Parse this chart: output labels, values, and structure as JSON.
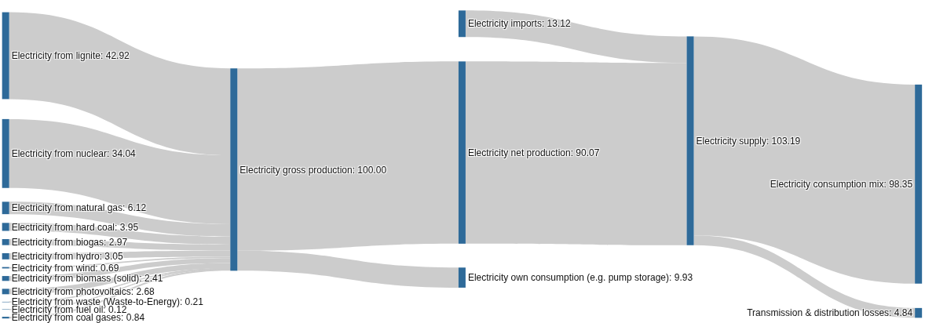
{
  "chart_data": {
    "type": "other",
    "categories": [
      "Electricity from lignite",
      "Electricity from nuclear",
      "Electricity from natural gas",
      "Electricity from hard coal",
      "Electricity from biogas",
      "Electricity from hydro",
      "Electricity from wind",
      "Electricity from biomass (solid)",
      "Electricity from photovoltaics",
      "Electricity from waste (Waste-to-Energy)",
      "Electricity from fuel oil",
      "Electricity from coal gases",
      "Electricity gross production",
      "Electricity imports",
      "Electricity net production",
      "Electricity own consumption (e.g. pump storage)",
      "Electricity supply",
      "Electricity consumption mix",
      "Transmission & distribution losses"
    ],
    "values": [
      42.92,
      34.04,
      6.12,
      3.95,
      2.97,
      3.05,
      0.69,
      2.41,
      2.68,
      0.21,
      0.12,
      0.84,
      100.0,
      13.12,
      90.07,
      9.93,
      103.19,
      98.35,
      4.84
    ],
    "value_labels": [
      ": 42.92",
      ": 34.04",
      ": 6.12",
      ": 3.95",
      ": 2.97",
      ": 3.05",
      ": 0.69",
      ": 2.41",
      ": 2.68",
      ": 0.21",
      ": 0.12",
      ": 0.84",
      ": 100.00",
      ": 13.12",
      ": 90.07",
      ": 9.93",
      ": 103.19",
      ": 98.35",
      ": 4.84"
    ],
    "cells": [
      [
        null,
        null,
        null,
        null,
        null,
        null,
        null,
        null,
        null,
        null,
        null,
        null,
        true,
        null,
        null,
        null,
        null,
        null,
        null
      ],
      [
        null,
        null,
        null,
        null,
        null,
        null,
        null,
        null,
        null,
        null,
        null,
        null,
        true,
        null,
        null,
        null,
        null,
        null,
        null
      ],
      [
        null,
        null,
        null,
        null,
        null,
        null,
        null,
        null,
        null,
        null,
        null,
        null,
        true,
        null,
        null,
        null,
        null,
        null,
        null
      ],
      [
        null,
        null,
        null,
        null,
        null,
        null,
        null,
        null,
        null,
        null,
        null,
        null,
        true,
        null,
        null,
        null,
        null,
        null,
        null
      ],
      [
        null,
        null,
        null,
        null,
        null,
        null,
        null,
        null,
        null,
        null,
        null,
        null,
        true,
        null,
        null,
        null,
        null,
        null,
        null
      ],
      [
        null,
        null,
        null,
        null,
        null,
        null,
        null,
        null,
        null,
        null,
        null,
        null,
        true,
        null,
        null,
        null,
        null,
        null,
        null
      ],
      [
        null,
        null,
        null,
        null,
        null,
        null,
        null,
        null,
        null,
        null,
        null,
        null,
        true,
        null,
        null,
        null,
        null,
        null,
        null
      ],
      [
        null,
        null,
        null,
        null,
        null,
        null,
        null,
        null,
        null,
        null,
        null,
        null,
        true,
        null,
        null,
        null,
        null,
        null,
        null
      ],
      [
        null,
        null,
        null,
        null,
        null,
        null,
        null,
        null,
        null,
        null,
        null,
        null,
        true,
        null,
        null,
        null,
        null,
        null,
        null
      ],
      [
        null,
        null,
        null,
        null,
        null,
        null,
        null,
        null,
        null,
        null,
        null,
        null,
        true,
        null,
        null,
        null,
        null,
        null,
        null
      ],
      [
        null,
        null,
        null,
        null,
        null,
        null,
        null,
        null,
        null,
        null,
        null,
        null,
        true,
        null,
        null,
        null,
        null,
        null,
        null
      ],
      [
        null,
        null,
        null,
        null,
        null,
        null,
        null,
        null,
        null,
        null,
        null,
        null,
        true,
        null,
        null,
        null,
        null,
        null,
        null
      ],
      [
        null,
        null,
        null,
        null,
        null,
        null,
        null,
        null,
        null,
        null,
        null,
        null,
        null,
        null,
        true,
        true,
        null,
        null,
        null
      ],
      [
        null,
        null,
        null,
        null,
        null,
        null,
        null,
        null,
        null,
        null,
        null,
        null,
        null,
        null,
        null,
        null,
        true,
        null,
        null
      ],
      [
        null,
        null,
        null,
        null,
        null,
        null,
        null,
        null,
        null,
        null,
        null,
        null,
        null,
        null,
        null,
        null,
        true,
        null,
        null
      ],
      [
        null,
        null,
        null,
        null,
        null,
        null,
        null,
        null,
        null,
        null,
        null,
        null,
        null,
        null,
        null,
        null,
        null,
        null,
        null
      ],
      [
        null,
        null,
        null,
        null,
        null,
        null,
        null,
        null,
        null,
        null,
        null,
        null,
        null,
        null,
        null,
        null,
        null,
        true,
        true
      ],
      [
        null,
        null,
        null,
        null,
        null,
        null,
        null,
        null,
        null,
        null,
        null,
        null,
        null,
        null,
        null,
        null,
        null,
        null,
        null
      ],
      [
        null,
        null,
        null,
        null,
        null,
        null,
        null,
        null,
        null,
        null,
        null,
        null,
        null,
        null,
        null,
        null,
        null,
        null,
        null
      ]
    ],
    "color": "#cccccc"
  }
}
